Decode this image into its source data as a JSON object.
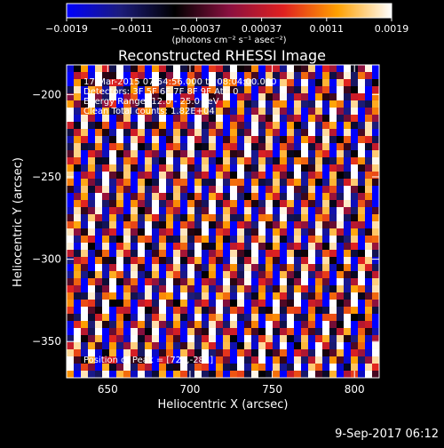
{
  "chart_data": {
    "type": "heatmap",
    "title": "Reconstructed RHESSI Image",
    "xlabel": "Heliocentric X (arcsec)",
    "ylabel": "Heliocentric Y (arcsec)",
    "xlim": [
      625,
      815
    ],
    "ylim": [
      -372,
      -182
    ],
    "xticks": [
      650,
      700,
      750,
      800
    ],
    "yticks": [
      -200,
      -250,
      -300,
      -350
    ],
    "x_tick_labels": [
      "650",
      "700",
      "750",
      "800"
    ],
    "y_tick_labels": [
      "−200",
      "−250",
      "−300",
      "−350"
    ],
    "colorbar": {
      "range": [
        -0.0019,
        0.0019
      ],
      "tick_labels": [
        "−0.0019",
        "−0.0011",
        "−0.00037",
        "0.00037",
        "0.0011",
        "0.0019"
      ],
      "unit_label": "(photons cm⁻² s⁻¹ asec⁻²)",
      "colormap_stops": [
        "#0000ff",
        "#1c1c7a",
        "#000000",
        "#8a1040",
        "#e02020",
        "#ffa000",
        "#ffffff"
      ]
    },
    "annotations": [
      "17-Mar-2015 07:54:56.000 to 08:04:00.000",
      "Detectors: 3F 5F 6F 7F 8F 9F Att: 0",
      "Energy Range: 12.0 - 25.0 keV",
      "Clean     Total counts: 1.82E+04",
      "Position of Peak = [723,-281]"
    ],
    "pattern": {
      "description": "periodic diagonal fringe pattern",
      "stripe_period_arcsec": 11.5,
      "stripe_tilt_x_per_y": 0.3
    }
  },
  "footer": {
    "timestamp": "9-Sep-2017 06:12"
  }
}
